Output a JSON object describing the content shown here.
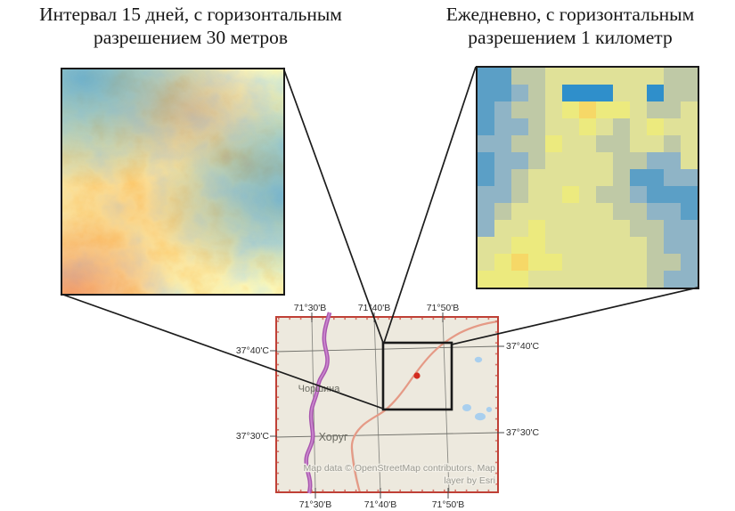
{
  "titles": {
    "left_line1": "Интервал 15 дней, с горизонтальным",
    "left_line2": "разрешением 30 метров",
    "right_line1": "Ежедневно, с горизонтальным",
    "right_line2": "разрешением 1 километр"
  },
  "map": {
    "axis": {
      "top": [
        "71°30'В",
        "71°40'В",
        "71°50'В"
      ],
      "bottom": [
        "71°30'В",
        "71°40'В",
        "71°50'В"
      ],
      "left": [
        "37°40'С",
        "37°30'С"
      ],
      "right": [
        "37°40'С",
        "37°30'С"
      ]
    },
    "places": {
      "north_town": "Чоршина",
      "south_town": "Хоруг"
    },
    "attribution_line1": "Map data © OpenStreetMap contributors, Map",
    "attribution_line2": "layer by Esri"
  },
  "coarse_image": {
    "palette": {
      "D": "#2f8fcb",
      "B": "#5b9fc6",
      "b": "#8fb4c6",
      "g": "#bfc9a6",
      "y": "#e0e198",
      "Y": "#ecea7e",
      "O": "#f6d867"
    },
    "rows": [
      "BBggyyyyyyygg",
      "BBbgyDDDyyDgg",
      "BbggyYOYYyggy",
      "BbbgyyYygyYyy",
      "bbggYyyggyygy",
      "Bbbgyyyyggbby",
      "BbgyyyyygBBbb",
      "bbgyyYyggbBBB",
      "bgyyyyyyggbbB",
      "byyYyyyyyggbb",
      "yyYYyyyyyygbb",
      "yYOYYyyyyyggb",
      "YYYyyyyyyygbb"
    ]
  },
  "colors": {
    "map_border": "#bf4036",
    "map_background": "#ede9de",
    "graticule": "#8a8a84",
    "study_area_outline": "#1a1a1a",
    "station_dot": "#d32b1f",
    "river": "#a855ae",
    "river_highlight": "#c986cd",
    "road": "#e59a86",
    "minor_road": "#cfcabc",
    "lake": "#a9cfee",
    "leader_line": "#1c1c1c"
  }
}
